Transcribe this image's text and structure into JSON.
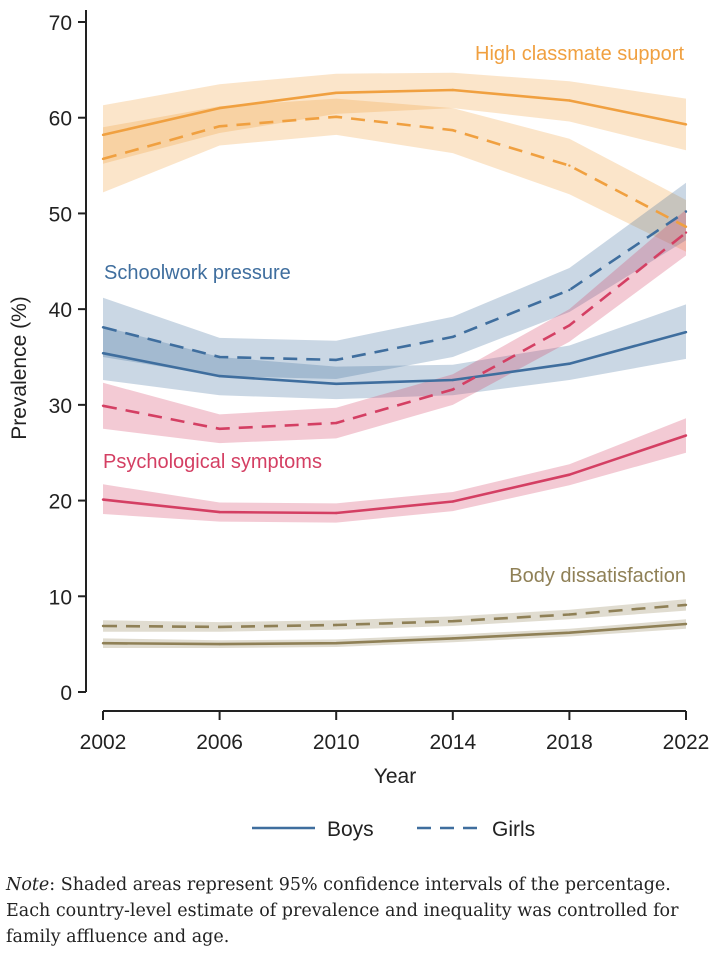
{
  "chart_data": {
    "type": "line",
    "xlabel": "Year",
    "ylabel": "Prevalence (%)",
    "x": [
      2002,
      2006,
      2010,
      2014,
      2018,
      2022
    ],
    "xlim": [
      2002,
      2022
    ],
    "ylim": [
      0,
      70
    ],
    "yticks": [
      0,
      10,
      20,
      30,
      40,
      50,
      60,
      70
    ],
    "grid": false,
    "legend": {
      "position": "bottom",
      "entries": [
        {
          "label": "Boys",
          "style": "solid"
        },
        {
          "label": "Girls",
          "style": "dashed"
        }
      ]
    },
    "groups": [
      {
        "label": "High classmate support",
        "color": "#F0A040",
        "boys": {
          "values": [
            58.2,
            61.0,
            62.6,
            62.9,
            61.8,
            59.3
          ],
          "lower": [
            55.2,
            58.4,
            60.4,
            61.0,
            59.6,
            56.6
          ],
          "upper": [
            61.3,
            63.5,
            64.6,
            64.7,
            63.8,
            62.0
          ]
        },
        "girls": {
          "values": [
            55.7,
            59.1,
            60.1,
            58.7,
            55.0,
            48.6
          ],
          "lower": [
            52.2,
            57.1,
            58.2,
            56.3,
            52.0,
            46.0
          ],
          "upper": [
            59.0,
            61.2,
            62.0,
            61.0,
            57.8,
            51.4
          ]
        }
      },
      {
        "label": "Schoolwork pressure",
        "color": "#3F6E9E",
        "boys": {
          "values": [
            35.4,
            33.0,
            32.2,
            32.6,
            34.3,
            37.6
          ],
          "lower": [
            32.6,
            31.0,
            30.6,
            31.0,
            32.6,
            34.8
          ],
          "upper": [
            38.2,
            35.0,
            34.0,
            34.2,
            36.2,
            40.5
          ]
        },
        "girls": {
          "values": [
            38.1,
            35.0,
            34.7,
            37.1,
            42.0,
            50.2
          ],
          "lower": [
            35.0,
            33.0,
            32.7,
            35.0,
            39.7,
            47.2
          ],
          "upper": [
            41.2,
            37.0,
            36.7,
            39.2,
            44.3,
            53.2
          ]
        }
      },
      {
        "label": "Psychological symptoms",
        "color": "#D43F63",
        "boys": {
          "values": [
            20.1,
            18.8,
            18.7,
            19.9,
            22.7,
            26.8
          ],
          "lower": [
            18.6,
            17.8,
            17.7,
            18.9,
            21.6,
            25.0
          ],
          "upper": [
            21.7,
            19.8,
            19.7,
            20.9,
            23.8,
            28.6
          ]
        },
        "girls": {
          "values": [
            29.9,
            27.5,
            28.1,
            31.6,
            38.3,
            48.0
          ],
          "lower": [
            27.5,
            26.0,
            26.5,
            30.0,
            36.6,
            45.6
          ],
          "upper": [
            32.3,
            29.0,
            29.7,
            33.2,
            40.0,
            50.4
          ]
        }
      },
      {
        "label": "Body dissatisfaction",
        "color": "#8F8056",
        "boys": {
          "values": [
            5.1,
            5.0,
            5.1,
            5.6,
            6.2,
            7.1
          ],
          "lower": [
            4.6,
            4.6,
            4.7,
            5.2,
            5.8,
            6.6
          ],
          "upper": [
            5.6,
            5.4,
            5.5,
            6.0,
            6.6,
            7.6
          ]
        },
        "girls": {
          "values": [
            6.9,
            6.8,
            7.0,
            7.4,
            8.1,
            9.1
          ],
          "lower": [
            6.3,
            6.3,
            6.5,
            6.9,
            7.6,
            8.5
          ],
          "upper": [
            7.5,
            7.3,
            7.5,
            7.9,
            8.6,
            9.7
          ]
        }
      }
    ]
  },
  "note": {
    "label": "Note",
    "text": ": Shaded areas represent 95% confidence intervals of the percentage. Each country-level estimate of prevalence and inequality was controlled for family affluence and age."
  }
}
